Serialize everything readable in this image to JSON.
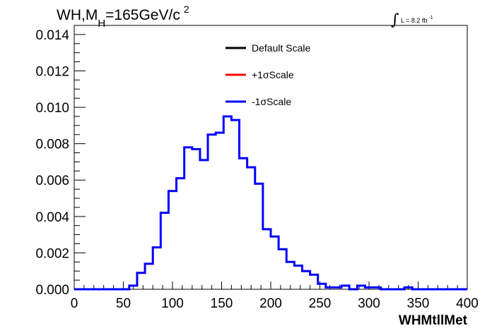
{
  "chart_data": {
    "type": "line",
    "title": {
      "prefix": "WH,M",
      "subscript": "H",
      "value": "=165GeV/c",
      "superscript": "2"
    },
    "luminosity": {
      "label": "L = 8.2 fb",
      "superscript": "-1"
    },
    "xlabel": "WHMtllMet",
    "ylabel": "",
    "xlim": [
      0,
      400
    ],
    "ylim": [
      0,
      0.0145
    ],
    "x_ticks": [
      0,
      50,
      100,
      150,
      200,
      250,
      300,
      350,
      400
    ],
    "x_tick_labels": [
      "0",
      "50",
      "100",
      "150",
      "200",
      "250",
      "300",
      "350",
      "400"
    ],
    "y_ticks": [
      0,
      0.002,
      0.004,
      0.006,
      0.008,
      0.01,
      0.012,
      0.014
    ],
    "y_tick_labels": [
      "0.000",
      "0.002",
      "0.004",
      "0.006",
      "0.008",
      "0.010",
      "0.012",
      "0.014"
    ],
    "bin_edges": [
      0,
      8,
      16,
      24,
      32,
      40,
      48,
      56,
      64,
      72,
      80,
      88,
      96,
      104,
      112,
      120,
      128,
      136,
      144,
      152,
      160,
      168,
      176,
      184,
      192,
      200,
      208,
      216,
      224,
      232,
      240,
      248,
      256,
      264,
      272,
      280,
      288,
      296,
      304,
      312,
      320,
      328,
      336,
      344,
      352,
      360,
      368,
      376,
      384,
      392,
      400
    ],
    "legend": [
      {
        "name": "Default Scale",
        "color": "#000000"
      },
      {
        "name": "+1σScale",
        "color": "#ff0000"
      },
      {
        "name": "-1σScale",
        "color": "#0000ff"
      }
    ],
    "series": [
      {
        "name": "-1σScale",
        "color": "#0000ff",
        "values": [
          0,
          0,
          0,
          0,
          0,
          0,
          0,
          0.0002,
          0.0009,
          0.0014,
          0.0023,
          0.0042,
          0.0054,
          0.0061,
          0.0078,
          0.0077,
          0.0071,
          0.0085,
          0.0086,
          0.0095,
          0.0093,
          0.0072,
          0.0067,
          0.0058,
          0.0033,
          0.0029,
          0.0022,
          0.0015,
          0.0013,
          0.001,
          0.0008,
          0.0003,
          0.0001,
          0.0001,
          0.0002,
          0,
          0.0002,
          0.0001,
          0.0001,
          0,
          0,
          0,
          0.0001,
          0,
          0,
          0,
          0,
          0,
          0,
          0
        ]
      }
    ],
    "grid": false,
    "legend_position": "top-center"
  }
}
